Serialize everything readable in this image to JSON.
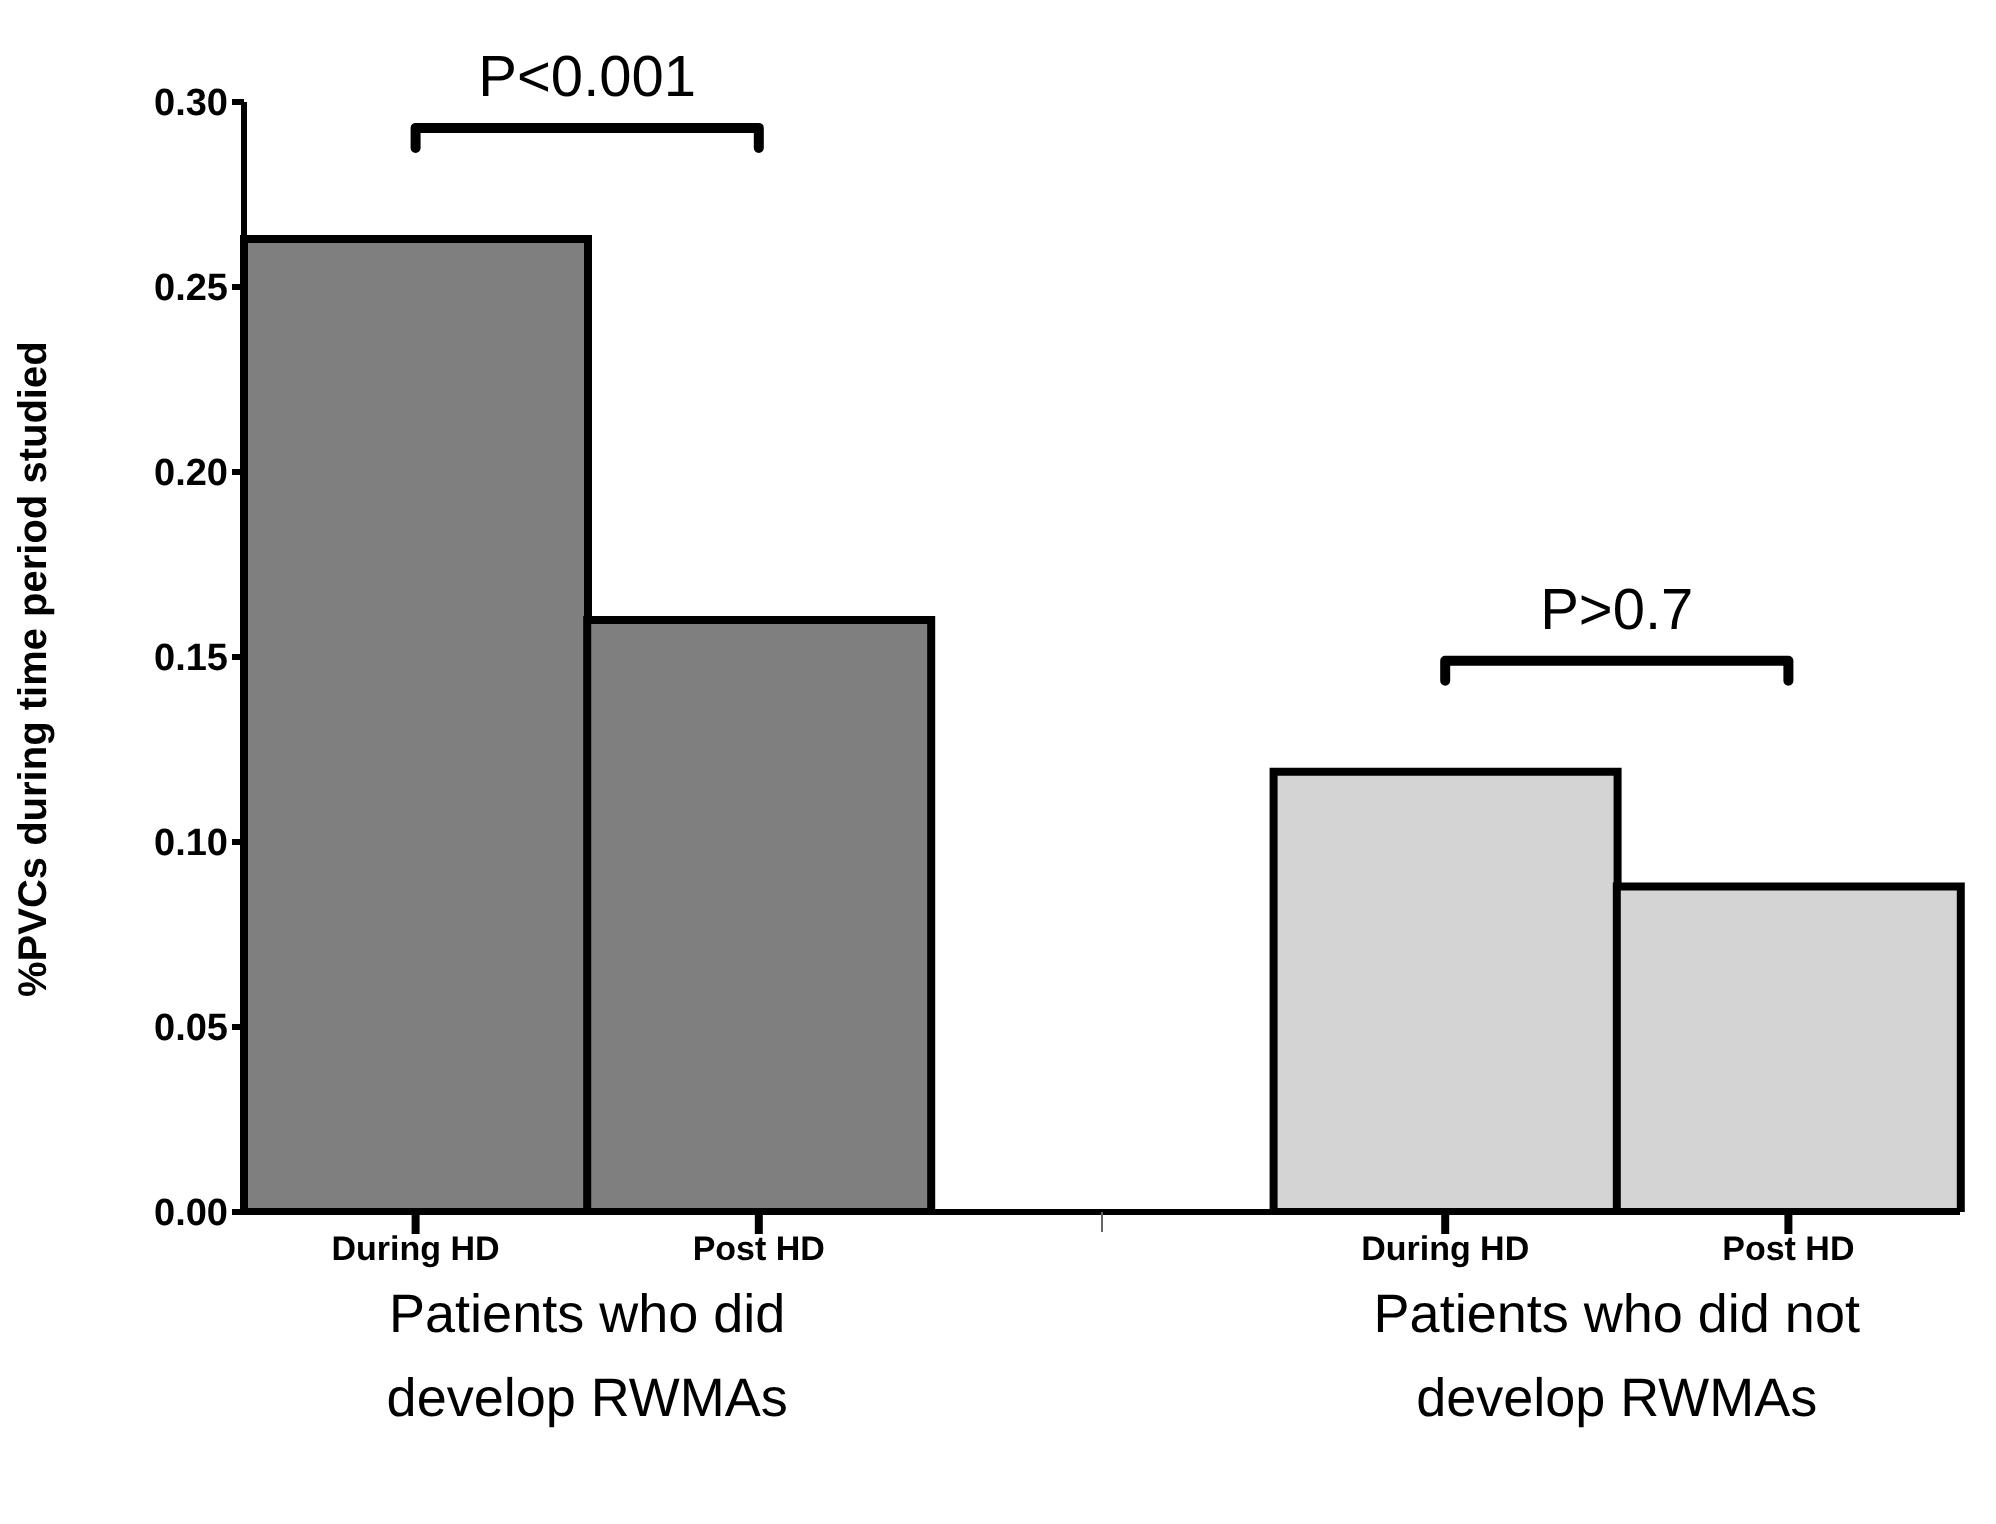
{
  "chart_data": {
    "type": "bar",
    "ylabel": "%PVCs during time period studied",
    "categories": [
      "During HD",
      "Post HD",
      null,
      "During HD",
      "Post HD"
    ],
    "values": [
      0.263,
      0.16,
      null,
      0.119,
      0.088
    ],
    "colors": [
      "#7f7f7f",
      "#7f7f7f",
      null,
      "#d4d4d4",
      "#d4d4d4"
    ],
    "ylim": [
      0,
      0.3
    ],
    "yticks": [
      {
        "value": 0,
        "label": "0.00"
      },
      {
        "value": 0.05,
        "label": "0.05"
      },
      {
        "value": 0.1,
        "label": "0.10"
      },
      {
        "value": 0.15,
        "label": "0.15"
      },
      {
        "value": 0.2,
        "label": "0.20"
      },
      {
        "value": 0.25,
        "label": "0.25"
      },
      {
        "value": 0.3,
        "label": "0.30"
      }
    ],
    "grid": false,
    "legend": false,
    "annotations": [
      "P<0.001",
      "P>0.7",
      "Patients who did develop RWMAs",
      "Patients who did not develop RWMAs"
    ]
  }
}
